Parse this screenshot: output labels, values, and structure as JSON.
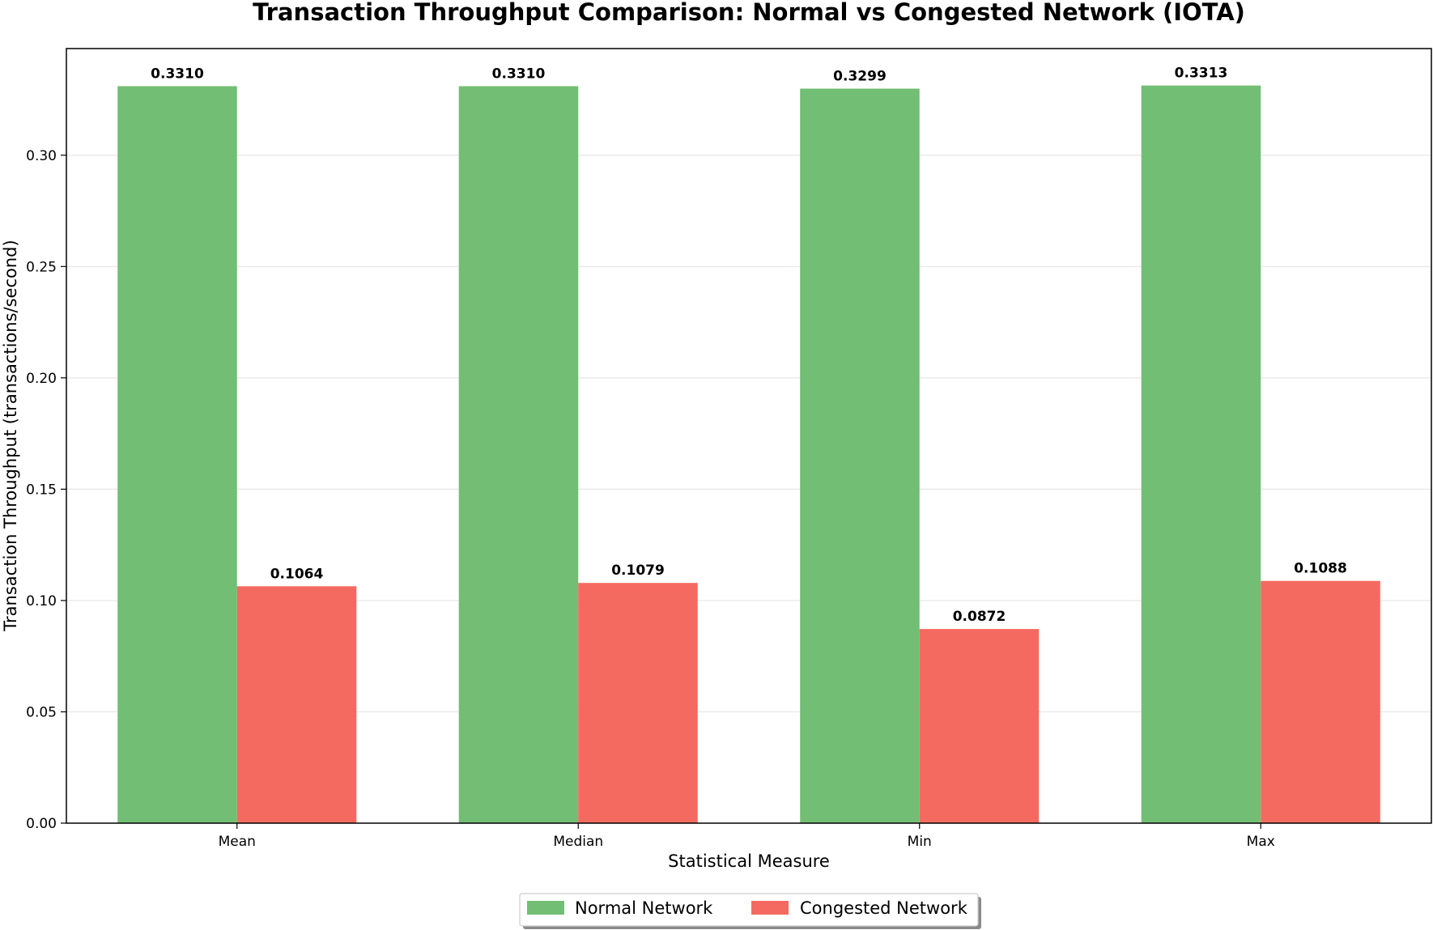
{
  "chart_data": {
    "type": "bar",
    "title": "Transaction Throughput Comparison: Normal vs Congested Network (IOTA)",
    "xlabel": "Statistical Measure",
    "ylabel": "Transaction Throughput (transactions/second)",
    "categories": [
      "Mean",
      "Median",
      "Min",
      "Max"
    ],
    "series": [
      {
        "name": "Normal Network",
        "color": "#72be74",
        "values": [
          0.331,
          0.331,
          0.3299,
          0.3313
        ],
        "labels": [
          "0.3310",
          "0.3310",
          "0.3299",
          "0.3313"
        ]
      },
      {
        "name": "Congested Network",
        "color": "#f46a60",
        "values": [
          0.1064,
          0.1079,
          0.0872,
          0.1088
        ],
        "labels": [
          "0.1064",
          "0.1079",
          "0.0872",
          "0.1088"
        ]
      }
    ],
    "ylim": [
      0,
      0.3479
    ],
    "yticks": [
      0.0,
      0.05,
      0.1,
      0.15,
      0.2,
      0.25,
      0.3
    ],
    "ytick_labels": [
      "0.00",
      "0.05",
      "0.10",
      "0.15",
      "0.20",
      "0.25",
      "0.30"
    ],
    "grid": "y",
    "legend_placement": "bottom-center"
  }
}
